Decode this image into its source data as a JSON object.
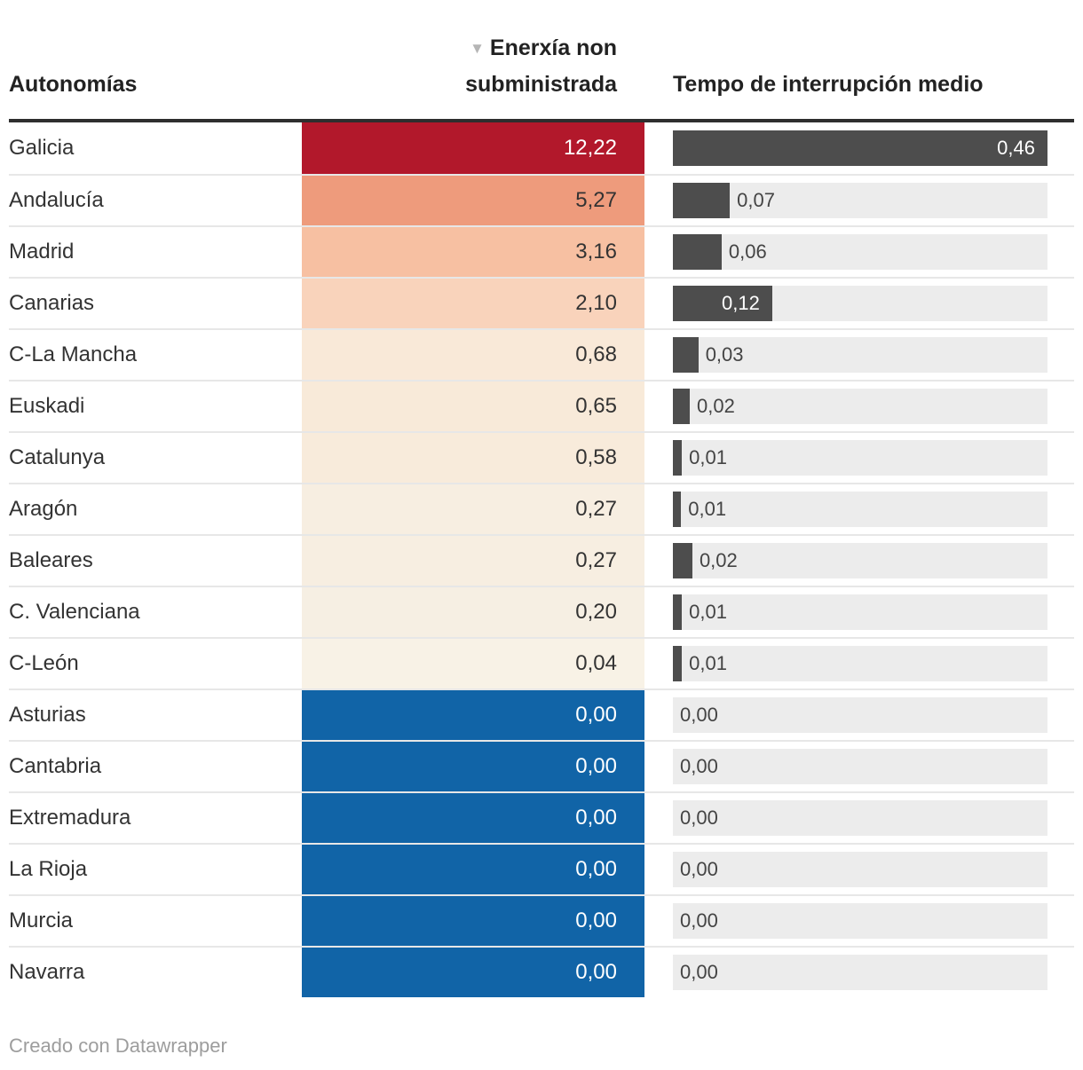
{
  "header": {
    "autonomias": "Autonomías",
    "sort_icon": "▼",
    "energy_line1": "Enerxía non",
    "energy_line2": "subministrada",
    "time": "Tempo de interrupción medio"
  },
  "footer": {
    "credit": "Creado con Datawrapper"
  },
  "colors": {
    "bar": "#4d4d4d",
    "bar_track": "#ececec",
    "header_rule": "#2e2e2e",
    "heat_max_red": "#b2182b",
    "heat_zero_blue": "#1164a7",
    "row_separator": "rgba(20,20,20,0.10)"
  },
  "chart_data": {
    "type": "table",
    "columns": [
      "Autonomías",
      "Enerxía non subministrada",
      "Tempo de interrupción medio"
    ],
    "sorted_by": "Enerxía non subministrada (descending)",
    "bar_max": 0.46,
    "rows": [
      {
        "region": "Galicia",
        "energy": "12,22",
        "energy_value": 12.22,
        "heat_bg": "#b2182b",
        "heat_text": "#ffffff",
        "time": "0,46",
        "time_value": 0.46,
        "bar_pct": 100,
        "time_label_pos": "inside"
      },
      {
        "region": "Andalucía",
        "energy": "5,27",
        "energy_value": 5.27,
        "heat_bg": "#ee9b7c",
        "heat_text": "#333333",
        "time": "0,07",
        "time_value": 0.07,
        "bar_pct": 15.2,
        "time_label_pos": "outside"
      },
      {
        "region": "Madrid",
        "energy": "3,16",
        "energy_value": 3.16,
        "heat_bg": "#f7c0a2",
        "heat_text": "#333333",
        "time": "0,06",
        "time_value": 0.06,
        "bar_pct": 13.0,
        "time_label_pos": "outside"
      },
      {
        "region": "Canarias",
        "energy": "2,10",
        "energy_value": 2.1,
        "heat_bg": "#f9d3bb",
        "heat_text": "#333333",
        "time": "0,12",
        "time_value": 0.12,
        "bar_pct": 26.5,
        "time_label_pos": "inside"
      },
      {
        "region": "C-La Mancha",
        "energy": "0,68",
        "energy_value": 0.68,
        "heat_bg": "#f9e9d8",
        "heat_text": "#333333",
        "time": "0,03",
        "time_value": 0.03,
        "bar_pct": 6.8,
        "time_label_pos": "outside"
      },
      {
        "region": "Euskadi",
        "energy": "0,65",
        "energy_value": 0.65,
        "heat_bg": "#f8ead9",
        "heat_text": "#333333",
        "time": "0,02",
        "time_value": 0.02,
        "bar_pct": 4.5,
        "time_label_pos": "outside"
      },
      {
        "region": "Catalunya",
        "energy": "0,58",
        "energy_value": 0.58,
        "heat_bg": "#f8ebdb",
        "heat_text": "#333333",
        "time": "0,01",
        "time_value": 0.01,
        "bar_pct": 2.4,
        "time_label_pos": "outside"
      },
      {
        "region": "Aragón",
        "energy": "0,27",
        "energy_value": 0.27,
        "heat_bg": "#f7eee1",
        "heat_text": "#333333",
        "time": "0,01",
        "time_value": 0.01,
        "bar_pct": 2.2,
        "time_label_pos": "outside"
      },
      {
        "region": "Baleares",
        "energy": "0,27",
        "energy_value": 0.27,
        "heat_bg": "#f7eee1",
        "heat_text": "#333333",
        "time": "0,02",
        "time_value": 0.02,
        "bar_pct": 5.2,
        "time_label_pos": "outside"
      },
      {
        "region": "C. Valenciana",
        "energy": "0,20",
        "energy_value": 0.2,
        "heat_bg": "#f6efe3",
        "heat_text": "#333333",
        "time": "0,01",
        "time_value": 0.01,
        "bar_pct": 2.4,
        "time_label_pos": "outside"
      },
      {
        "region": "C-León",
        "energy": "0,04",
        "energy_value": 0.04,
        "heat_bg": "#f8f2e6",
        "heat_text": "#333333",
        "time": "0,01",
        "time_value": 0.01,
        "bar_pct": 2.4,
        "time_label_pos": "outside"
      },
      {
        "region": "Asturias",
        "energy": "0,00",
        "energy_value": 0.0,
        "heat_bg": "#1164a7",
        "heat_text": "#ffffff",
        "time": "0,00",
        "time_value": 0.0,
        "bar_pct": 0,
        "time_label_pos": "zero"
      },
      {
        "region": "Cantabria",
        "energy": "0,00",
        "energy_value": 0.0,
        "heat_bg": "#1164a7",
        "heat_text": "#ffffff",
        "time": "0,00",
        "time_value": 0.0,
        "bar_pct": 0,
        "time_label_pos": "zero"
      },
      {
        "region": "Extremadura",
        "energy": "0,00",
        "energy_value": 0.0,
        "heat_bg": "#1164a7",
        "heat_text": "#ffffff",
        "time": "0,00",
        "time_value": 0.0,
        "bar_pct": 0,
        "time_label_pos": "zero"
      },
      {
        "region": "La Rioja",
        "energy": "0,00",
        "energy_value": 0.0,
        "heat_bg": "#1164a7",
        "heat_text": "#ffffff",
        "time": "0,00",
        "time_value": 0.0,
        "bar_pct": 0,
        "time_label_pos": "zero"
      },
      {
        "region": "Murcia",
        "energy": "0,00",
        "energy_value": 0.0,
        "heat_bg": "#1164a7",
        "heat_text": "#ffffff",
        "time": "0,00",
        "time_value": 0.0,
        "bar_pct": 0,
        "time_label_pos": "zero"
      },
      {
        "region": "Navarra",
        "energy": "0,00",
        "energy_value": 0.0,
        "heat_bg": "#1164a7",
        "heat_text": "#ffffff",
        "time": "0,00",
        "time_value": 0.0,
        "bar_pct": 0,
        "time_label_pos": "zero"
      }
    ]
  }
}
